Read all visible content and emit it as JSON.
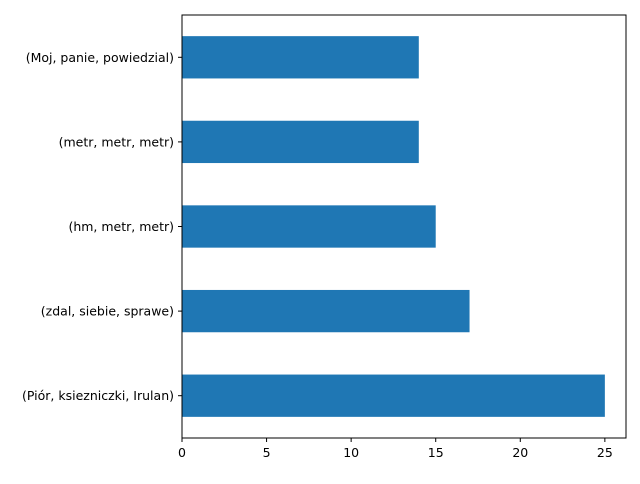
{
  "chart_data": {
    "type": "bar",
    "orientation": "horizontal",
    "title": "",
    "xlabel": "",
    "ylabel": "",
    "categories": [
      "(Piór, ksiezniczki, Irulan)",
      "(zdal, siebie, sprawe)",
      "(hm, metr, metr)",
      "(metr, metr, metr)",
      "(Moj, panie, powiedzial)"
    ],
    "values": [
      25,
      17,
      15,
      14,
      14
    ],
    "xlim": [
      0,
      26.25
    ],
    "xticks": [
      0,
      5,
      10,
      15,
      20,
      25
    ],
    "xtick_labels": [
      "0",
      "5",
      "10",
      "15",
      "20",
      "25"
    ],
    "grid": false,
    "legend": "none",
    "bar_color": "#1f77b4"
  }
}
